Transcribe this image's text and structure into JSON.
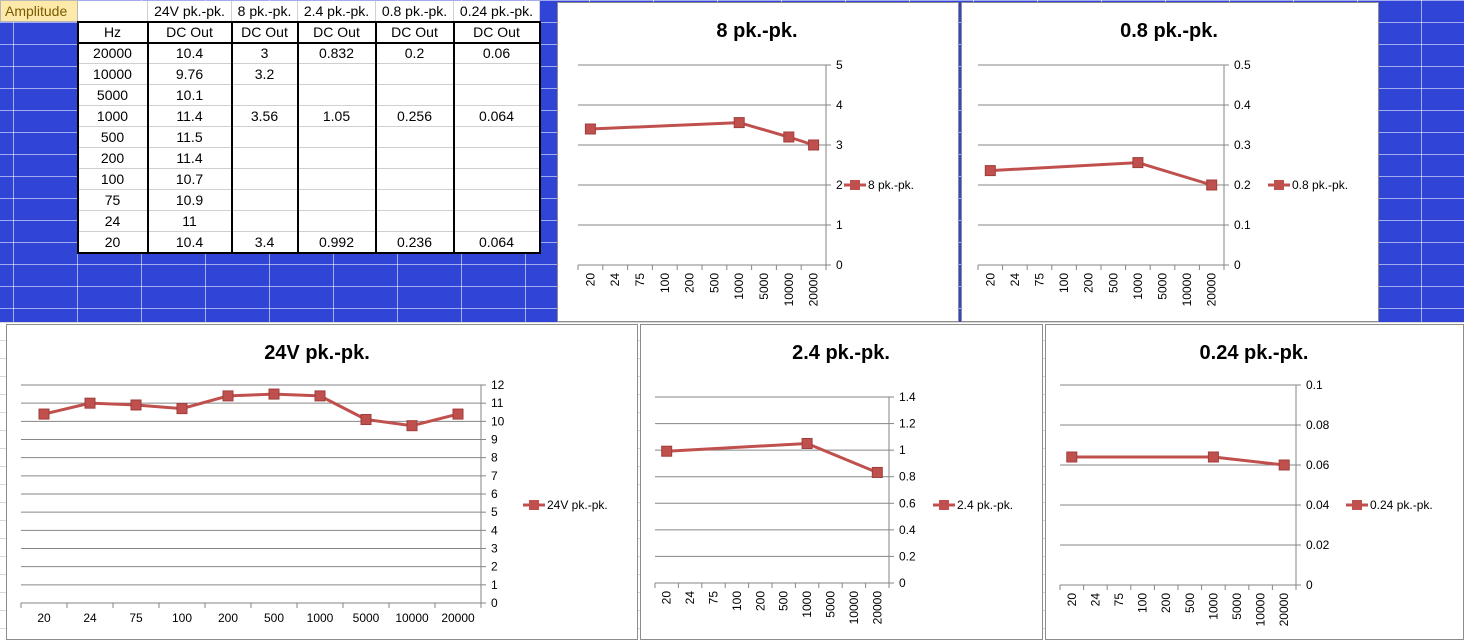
{
  "table": {
    "amplitude_label": "Amplitude",
    "col_headers": [
      "24V pk.-pk.",
      "8 pk.-pk.",
      "2.4 pk.-pk.",
      "0.8 pk.-pk.",
      "0.24 pk.-pk."
    ],
    "hz_label": "Hz",
    "unit_labels": [
      "DC Out",
      "DC Out",
      "DC Out",
      "DC Out",
      "DC Out"
    ],
    "rows": [
      [
        "20000",
        "10.4",
        "3",
        "0.832",
        "0.2",
        "0.06"
      ],
      [
        "10000",
        "9.76",
        "3.2",
        "",
        "",
        ""
      ],
      [
        "5000",
        "10.1",
        "",
        "",
        "",
        ""
      ],
      [
        "1000",
        "11.4",
        "3.56",
        "1.05",
        "0.256",
        "0.064"
      ],
      [
        "500",
        "11.5",
        "",
        "",
        "",
        ""
      ],
      [
        "200",
        "11.4",
        "",
        "",
        "",
        ""
      ],
      [
        "100",
        "10.7",
        "",
        "",
        "",
        ""
      ],
      [
        "75",
        "10.9",
        "",
        "",
        "",
        ""
      ],
      [
        "24",
        "11",
        "",
        "",
        "",
        ""
      ],
      [
        "20",
        "10.4",
        "3.4",
        "0.992",
        "0.236",
        "0.064"
      ]
    ]
  },
  "colors": {
    "series": "#c0504d",
    "sheet_blue": "#3045d6",
    "amplitude_fill": "#fde9a9"
  },
  "chart_data": [
    {
      "id": "chart-8",
      "type": "line",
      "title": "8 pk.-pk.",
      "categories": [
        "20",
        "24",
        "75",
        "100",
        "200",
        "500",
        "1000",
        "5000",
        "10000",
        "20000"
      ],
      "series": [
        {
          "name": "8 pk.-pk.",
          "values": [
            3.4,
            null,
            null,
            null,
            null,
            null,
            3.56,
            null,
            3.2,
            3
          ]
        }
      ],
      "ylim": [
        0,
        5
      ],
      "yticks": [
        "0",
        "1",
        "2",
        "3",
        "4",
        "5"
      ],
      "ystep": 1,
      "rotated_x": true,
      "legend": "right",
      "grid": true
    },
    {
      "id": "chart-08",
      "type": "line",
      "title": "0.8 pk.-pk.",
      "categories": [
        "20",
        "24",
        "75",
        "100",
        "200",
        "500",
        "1000",
        "5000",
        "10000",
        "20000"
      ],
      "series": [
        {
          "name": "0.8 pk.-pk.",
          "values": [
            0.236,
            null,
            null,
            null,
            null,
            null,
            0.256,
            null,
            null,
            0.2
          ]
        }
      ],
      "ylim": [
        0,
        0.5
      ],
      "yticks": [
        "0",
        "0.1",
        "0.2",
        "0.3",
        "0.4",
        "0.5"
      ],
      "ystep": 0.1,
      "rotated_x": true,
      "legend": "right",
      "grid": true
    },
    {
      "id": "chart-24",
      "type": "line",
      "title": "24V pk.-pk.",
      "categories": [
        "20",
        "24",
        "75",
        "100",
        "200",
        "500",
        "1000",
        "5000",
        "10000",
        "20000"
      ],
      "series": [
        {
          "name": "24V pk.-pk.",
          "values": [
            10.4,
            11,
            10.9,
            10.7,
            11.4,
            11.5,
            11.4,
            10.1,
            9.76,
            10.4
          ]
        }
      ],
      "ylim": [
        0,
        12
      ],
      "yticks": [
        "0",
        "1",
        "2",
        "3",
        "4",
        "5",
        "6",
        "7",
        "8",
        "9",
        "10",
        "11",
        "12"
      ],
      "ystep": 1,
      "rotated_x": false,
      "legend": "right",
      "grid": true
    },
    {
      "id": "chart-2_4",
      "type": "line",
      "title": "2.4 pk.-pk.",
      "categories": [
        "20",
        "24",
        "75",
        "100",
        "200",
        "500",
        "1000",
        "5000",
        "10000",
        "20000"
      ],
      "series": [
        {
          "name": "2.4 pk.-pk.",
          "values": [
            0.992,
            null,
            null,
            null,
            null,
            null,
            1.05,
            null,
            null,
            0.832
          ]
        }
      ],
      "ylim": [
        0,
        1.4
      ],
      "yticks": [
        "0",
        "0.2",
        "0.4",
        "0.6",
        "0.8",
        "1",
        "1.2",
        "1.4"
      ],
      "ystep": 0.2,
      "rotated_x": true,
      "legend": "right",
      "grid": true
    },
    {
      "id": "chart-0_24",
      "type": "line",
      "title": "0.24 pk.-pk.",
      "categories": [
        "20",
        "24",
        "75",
        "100",
        "200",
        "500",
        "1000",
        "5000",
        "10000",
        "20000"
      ],
      "series": [
        {
          "name": "0.24 pk.-pk.",
          "values": [
            0.064,
            null,
            null,
            null,
            null,
            null,
            0.064,
            null,
            null,
            0.06
          ]
        }
      ],
      "ylim": [
        0,
        0.1
      ],
      "yticks": [
        "0",
        "0.02",
        "0.04",
        "0.06",
        "0.08",
        "0.1"
      ],
      "ystep": 0.02,
      "rotated_x": true,
      "legend": "right",
      "grid": true
    }
  ]
}
